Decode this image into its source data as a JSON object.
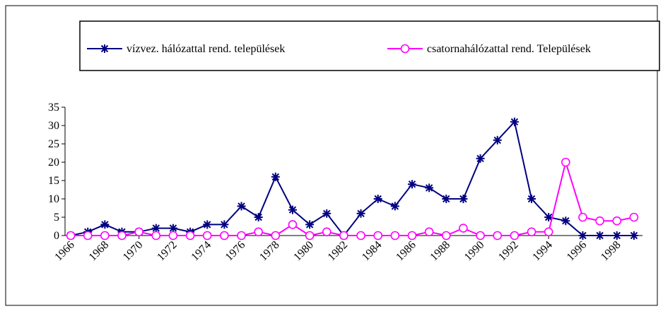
{
  "chart_data": {
    "type": "line",
    "x": [
      1966,
      1967,
      1968,
      1969,
      1970,
      1971,
      1972,
      1973,
      1974,
      1975,
      1976,
      1977,
      1978,
      1979,
      1980,
      1981,
      1982,
      1983,
      1984,
      1985,
      1986,
      1987,
      1988,
      1989,
      1990,
      1991,
      1992,
      1993,
      1994,
      1995,
      1996,
      1997,
      1998,
      1999
    ],
    "series": [
      {
        "name": "vízvez. hálózattal rend. települések",
        "color": "#000080",
        "marker": "star",
        "values": [
          0,
          1,
          3,
          1,
          1,
          2,
          2,
          1,
          3,
          3,
          8,
          5,
          16,
          7,
          3,
          6,
          0,
          6,
          10,
          8,
          14,
          13,
          10,
          10,
          21,
          26,
          31,
          10,
          5,
          4,
          0,
          0,
          0,
          0
        ]
      },
      {
        "name": "csatornahálózattal rend. Települések",
        "color": "#ff00ff",
        "marker": "circle",
        "values": [
          0,
          0,
          0,
          0,
          1,
          0,
          0,
          0,
          0,
          0,
          0,
          1,
          0,
          3,
          0,
          1,
          0,
          0,
          0,
          0,
          0,
          1,
          0,
          2,
          0,
          0,
          0,
          1,
          1,
          20,
          5,
          4,
          4,
          5
        ]
      }
    ],
    "xlim": [
      1965.5,
      1999.5
    ],
    "xticks": [
      1966,
      1968,
      1970,
      1972,
      1974,
      1976,
      1978,
      1980,
      1982,
      1984,
      1986,
      1988,
      1990,
      1992,
      1994,
      1996,
      1998
    ],
    "ylim": [
      0,
      35
    ],
    "yticks": [
      0,
      5,
      10,
      15,
      20,
      25,
      30,
      35
    ],
    "legend": "top"
  }
}
